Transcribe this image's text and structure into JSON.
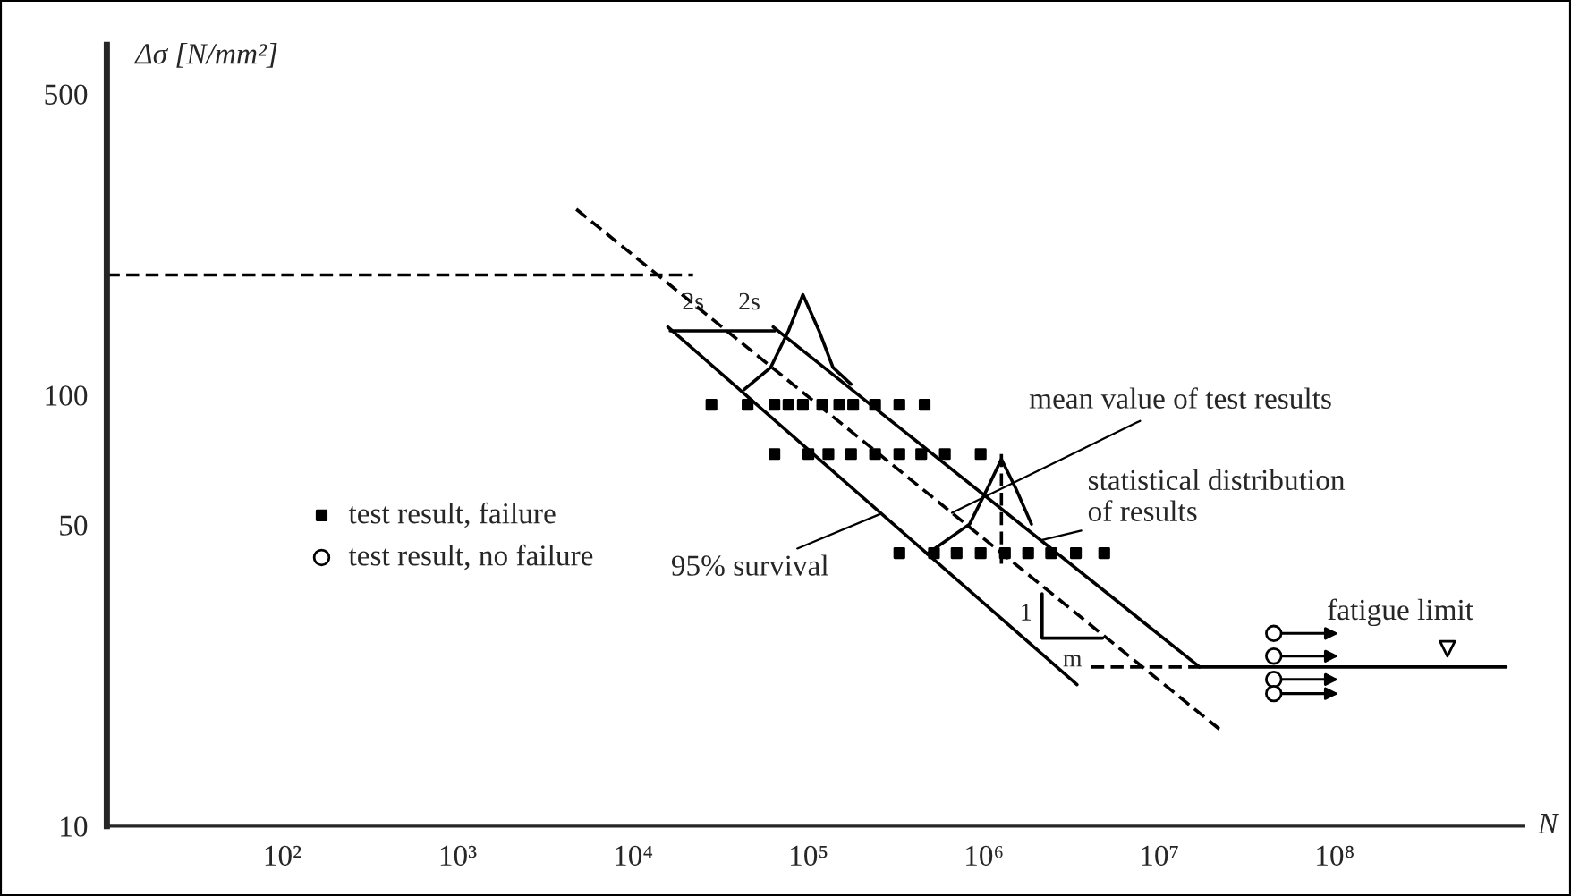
{
  "chart_data": {
    "type": "line",
    "xlabel": "N",
    "ylabel": "Δσ [N/mm²]",
    "log": "xy",
    "grid": false,
    "legend": "left",
    "xlim": [
      10,
      1200000000
    ],
    "ylim": [
      10,
      650
    ],
    "xticks": [
      {
        "value": 100,
        "label": "10²"
      },
      {
        "value": 1000,
        "label": "10³"
      },
      {
        "value": 10000,
        "label": "10⁴"
      },
      {
        "value": 100000,
        "label": "10⁵"
      },
      {
        "value": 1000000,
        "label": "10⁶"
      },
      {
        "value": 10000000,
        "label": "10⁷"
      },
      {
        "value": 100000000,
        "label": "10⁸"
      }
    ],
    "yticks": [
      10,
      50,
      100,
      500
    ],
    "series": [
      {
        "type": "line",
        "color": "#000000",
        "line_style": "dashed",
        "x": [
          10,
          22000
        ],
        "values": [
          190,
          190
        ]
      },
      {
        "type": "line",
        "color": "#000000",
        "line_style": "dashed",
        "x": [
          4750,
          22000000
        ],
        "values": [
          270,
          16.8
        ]
      },
      {
        "type": "line",
        "color": "#000000",
        "line_style": "solid",
        "x": [
          15800,
          3400000
        ],
        "values": [
          144,
          21.3
        ]
      },
      {
        "type": "line",
        "color": "#000000",
        "line_style": "solid",
        "x": [
          63000,
          17000000
        ],
        "values": [
          144,
          23.4
        ]
      },
      {
        "type": "line",
        "color": "#000000",
        "line_style": "solid",
        "x": [
          17000000,
          950000000
        ],
        "values": [
          23.4,
          23.4
        ]
      },
      {
        "type": "line",
        "color": "#000000",
        "line_style": "dashed",
        "x": [
          4100000,
          17000000
        ],
        "values": [
          23.4,
          23.4
        ]
      },
      {
        "type": "line",
        "color": "#000000",
        "line_style": "solid",
        "x": [
          43000,
          61000,
          77000,
          93000,
          115000,
          138000,
          175000
        ],
        "values": [
          103,
          116,
          141,
          171,
          141,
          116,
          106
        ]
      },
      {
        "type": "line",
        "color": "#000000",
        "line_style": "solid",
        "x": [
          475000,
          830000,
          1050000,
          1260000,
          1520000,
          1870000
        ],
        "values": [
          42.8,
          50.2,
          60.8,
          71,
          60.8,
          50.2
        ]
      },
      {
        "type": "line",
        "color": "#000000",
        "line_style": "dashed",
        "x": [
          1260000,
          1260000
        ],
        "values": [
          73,
          39.6
        ]
      },
      {
        "type": "line",
        "color": "#000000",
        "line_style": "solid",
        "x": [
          2150000,
          2150000,
          4750000
        ],
        "values": [
          34.6,
          27.3,
          27.3
        ]
      },
      {
        "color": "#000000",
        "line_style": "solid",
        "x": [
          16300,
          29200,
          64300
        ],
        "values": [
          141,
          141,
          141
        ]
      },
      {
        "type": "scatter",
        "name": "test result, failure",
        "color": "#000000",
        "marker": "square",
        "x": [
          28000,
          45000,
          64000,
          77000,
          93000,
          120000,
          150000,
          180000,
          240000,
          330000,
          460000,
          64000,
          100000,
          130000,
          175000,
          240000,
          330000,
          440000,
          600000,
          960000,
          330000,
          520000,
          700000,
          960000,
          1320000,
          1790000,
          2420000,
          3350000,
          4860000
        ],
        "values": [
          95,
          95,
          95,
          95,
          95,
          95,
          95,
          95,
          95,
          95,
          95,
          73,
          73,
          73,
          73,
          73,
          73,
          73,
          73,
          73,
          43,
          43,
          43,
          43,
          43,
          43,
          43,
          43,
          43
        ]
      },
      {
        "type": "scatter",
        "name": "test result, no failure",
        "color": "#000000",
        "marker": "circle",
        "x": [
          45000000,
          45000000,
          45000000,
          45000000
        ],
        "values": [
          28,
          24.8,
          21.9,
          20.3
        ]
      },
      {
        "type": "scatter",
        "color": "#000000",
        "marker": "triangle",
        "x": [
          440000000
        ],
        "values": [
          25.8
        ]
      }
    ],
    "annotations": [
      {
        "text": "mean value of test results",
        "x": 658000,
        "y": 53.3
      },
      {
        "text": "statistical distribution\nof results",
        "x": 2100000,
        "y": 46
      },
      {
        "text": "95% survival",
        "x": 260000,
        "y": 53.1
      },
      {
        "text": "fatigue limit",
        "x": 440000000,
        "y": 23.4
      },
      {
        "text": "2s",
        "x": 22000,
        "y": 141
      },
      {
        "text": "2s",
        "x": 46000,
        "y": 141
      },
      {
        "text": "1",
        "x": 2150000,
        "y": 31
      },
      {
        "text": "m",
        "x": 3200000,
        "y": 27.3
      }
    ]
  }
}
